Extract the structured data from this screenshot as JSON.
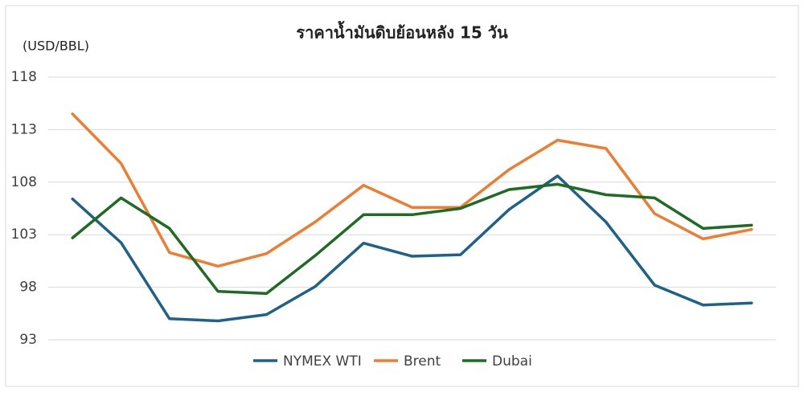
{
  "chart_data": {
    "type": "line",
    "title": "ราคาน้ำมันดิบย้อนหลัง 15 วัน",
    "y_label": "(USD/BBL)",
    "categories": [
      null,
      null,
      null,
      null,
      null,
      null,
      null,
      null,
      null,
      null,
      null,
      null,
      null,
      null,
      null
    ],
    "series": [
      {
        "name": "NYMEX WTI",
        "color": "#1f6288",
        "values": [
          106.4,
          102.25,
          95.0,
          94.8,
          95.4,
          98.05,
          102.2,
          100.95,
          101.1,
          105.4,
          108.6,
          104.2,
          98.2,
          96.3,
          96.5
        ]
      },
      {
        "name": "Brent",
        "color": "#ee7d31",
        "values": [
          114.5,
          109.8,
          101.3,
          100.0,
          101.2,
          104.2,
          107.7,
          105.6,
          105.6,
          109.2,
          112.0,
          111.2,
          105.0,
          102.6,
          103.5
        ]
      },
      {
        "name": "Dubai",
        "color": "#1e6b23",
        "values": [
          102.7,
          106.5,
          103.6,
          97.6,
          97.4,
          101.0,
          104.9,
          104.9,
          105.5,
          107.3,
          107.8,
          106.8,
          106.5,
          103.6,
          103.9
        ]
      }
    ],
    "ylim": [
      93,
      118
    ],
    "yticks": [
      93,
      98,
      103,
      108,
      113,
      118
    ],
    "grid": true,
    "legend": "bottom"
  }
}
